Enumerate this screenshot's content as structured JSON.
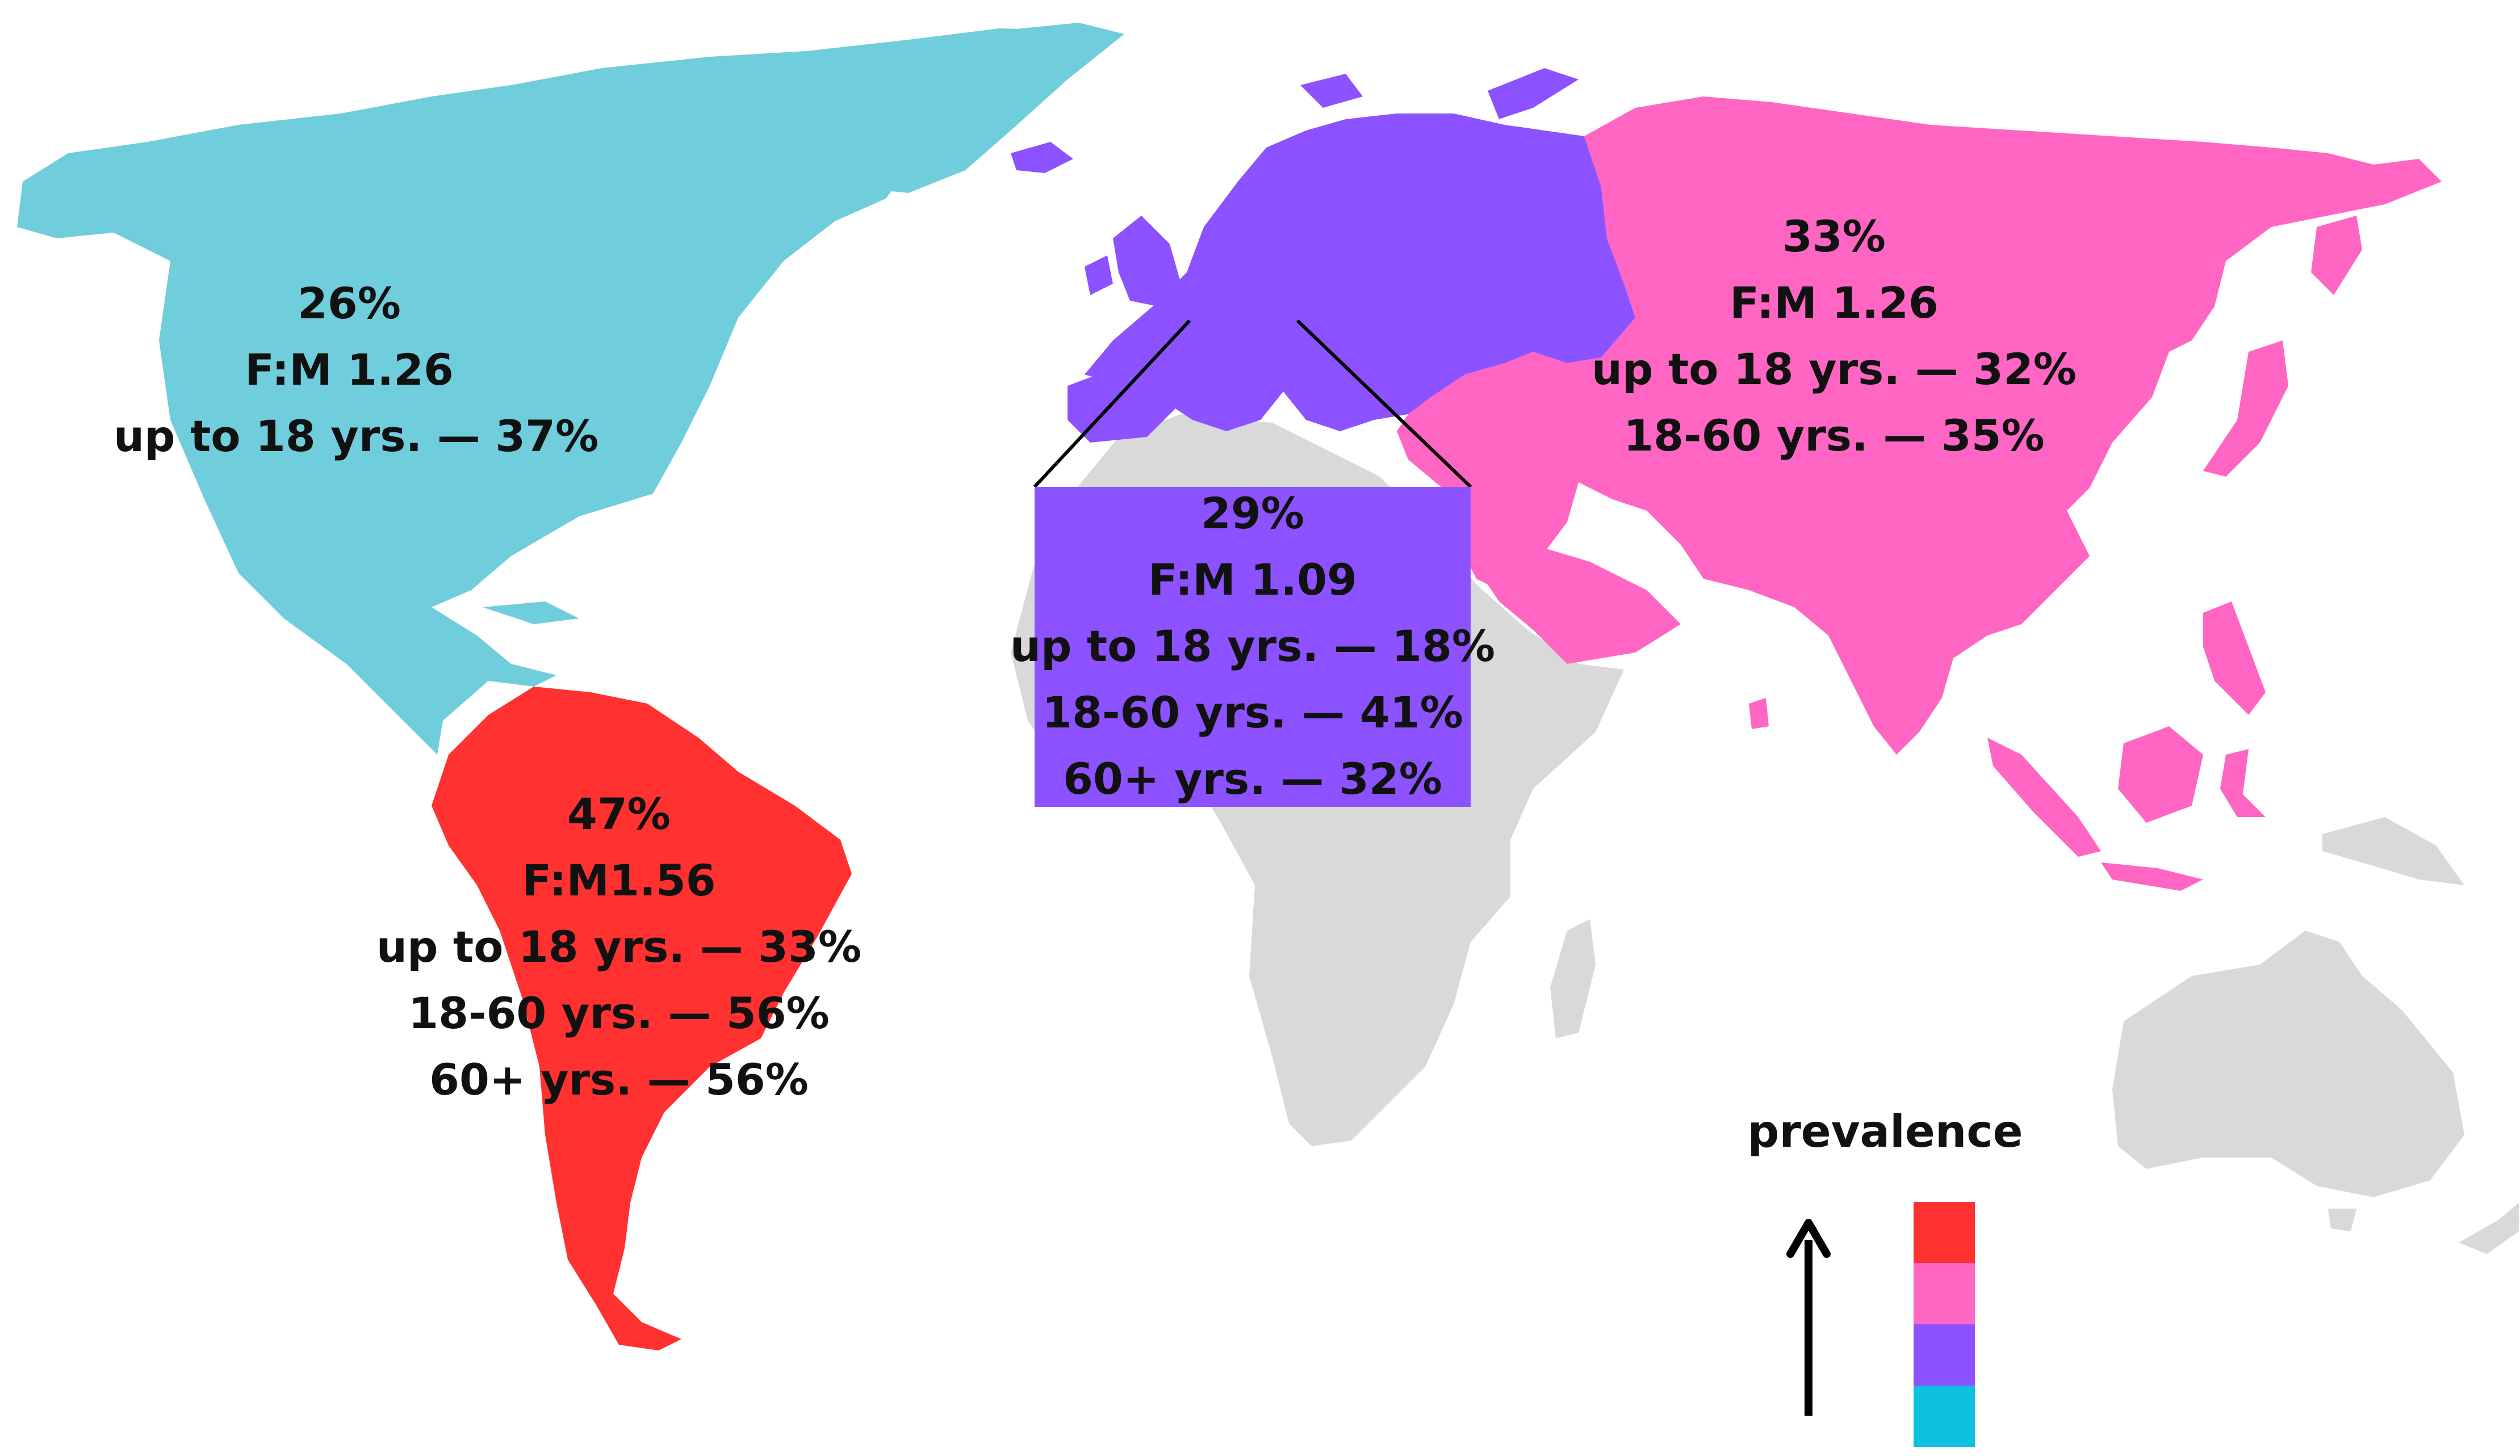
{
  "regions": {
    "north_america": {
      "color": "#70cddc",
      "lines": [
        "26%",
        "F:M 1.26",
        "up to 18 yrs. — 37%"
      ]
    },
    "south_america": {
      "color": "#ff3131",
      "lines": [
        "47%",
        "F:M1.56",
        "up to 18 yrs. — 33%",
        "18-60 yrs. — 56%",
        "60+ yrs. — 56%"
      ]
    },
    "europe": {
      "color": "#8c52ff",
      "lines": [
        "29%",
        "F:M 1.09",
        "up to 18 yrs. — 18%",
        "18-60 yrs. — 41%",
        "60+ yrs. — 32%"
      ]
    },
    "asia": {
      "color": "#ff66c4",
      "lines": [
        "33%",
        "F:M 1.26",
        "up to 18 yrs. — 32%",
        "18-60 yrs. — 35%"
      ]
    },
    "no_data_color": "#d9d9d9"
  },
  "legend": {
    "title": "prevalence",
    "colors": [
      "#ff3131",
      "#ff66c4",
      "#8c52ff",
      "#0cc0df"
    ]
  }
}
